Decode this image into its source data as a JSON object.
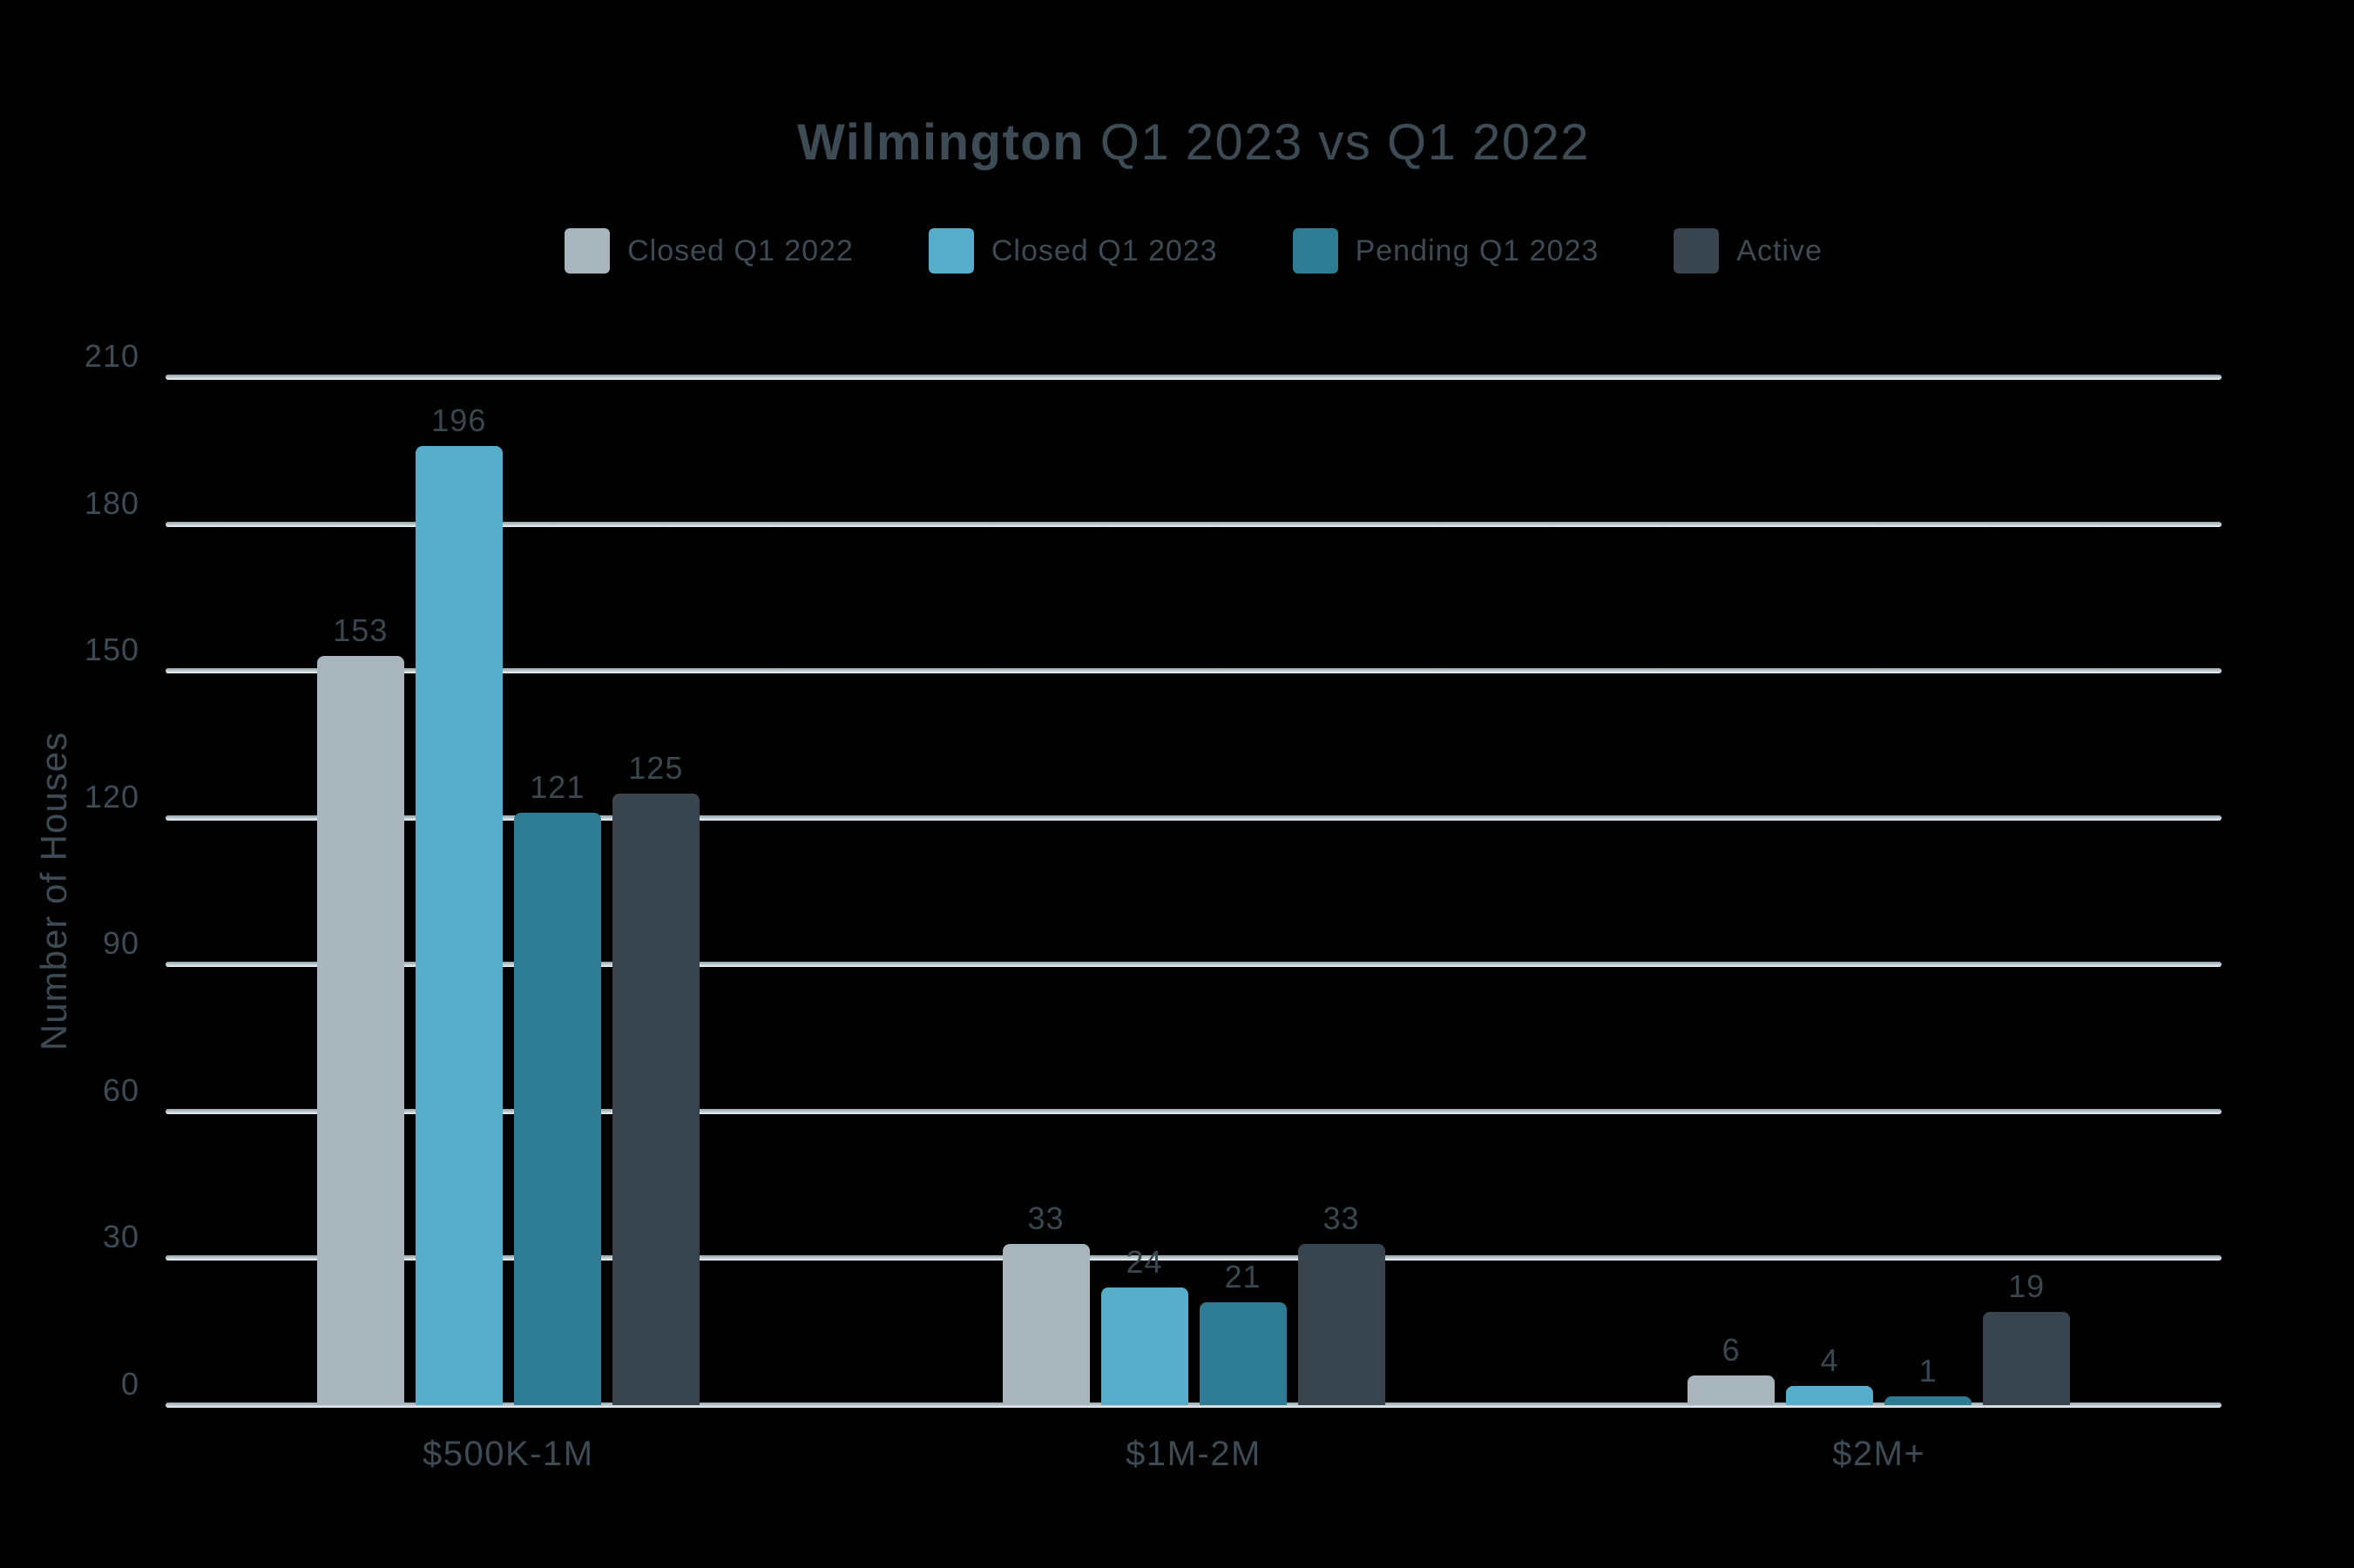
{
  "chart_data": {
    "type": "bar",
    "title_bold": "Wilmington",
    "title_rest": " Q1 2023 vs Q1 2022",
    "ylabel": "Number of Houses",
    "categories": [
      "$500K-1M",
      "$1M-2M",
      "$2M+"
    ],
    "series": [
      {
        "name": "Closed Q1 2022",
        "color": "#a9b5bd",
        "values": [
          153,
          33,
          6
        ]
      },
      {
        "name": "Closed Q1 2023",
        "color": "#56aeca",
        "values": [
          196,
          24,
          4
        ]
      },
      {
        "name": "Pending Q1 2023",
        "color": "#2e7c94",
        "values": [
          121,
          21,
          1
        ]
      },
      {
        "name": "Active",
        "color": "#38454f",
        "values": [
          125,
          33,
          19
        ]
      }
    ],
    "yticks": [
      0,
      30,
      60,
      90,
      120,
      150,
      180,
      210
    ],
    "ylim": [
      0,
      210
    ],
    "grid": true,
    "legend_position": "top",
    "colors": {
      "text": "#3d4b55",
      "gridline": "#b6c0c6",
      "background": "#000000"
    }
  }
}
